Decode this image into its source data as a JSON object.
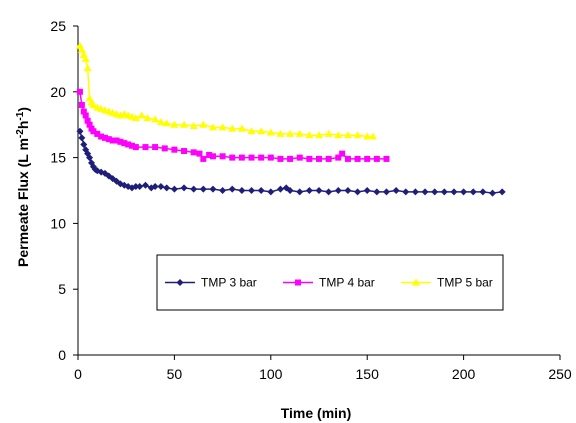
{
  "chart_data": {
    "type": "scatter",
    "title": "",
    "xlabel": "Time (min)",
    "ylabel_main": "Permeate Flux (L m",
    "ylabel_sup1": "-2",
    "ylabel_mid": "h",
    "ylabel_sup2": "-1",
    "ylabel_end": ")",
    "xlim": [
      0,
      250
    ],
    "ylim": [
      0,
      25
    ],
    "x_ticks": [
      0,
      50,
      100,
      150,
      200,
      250
    ],
    "y_ticks": [
      0,
      5,
      10,
      15,
      20,
      25
    ],
    "grid": false,
    "legend_position": "center-right",
    "series": [
      {
        "name": "TMP 3 bar",
        "color": "#1F1F7A",
        "marker": "diamond",
        "points": [
          [
            1,
            17
          ],
          [
            2,
            16.5
          ],
          [
            3,
            16
          ],
          [
            4,
            15.6
          ],
          [
            5,
            15.3
          ],
          [
            6,
            15
          ],
          [
            7,
            14.6
          ],
          [
            8,
            14.3
          ],
          [
            9,
            14.1
          ],
          [
            10,
            14.0
          ],
          [
            12,
            13.9
          ],
          [
            14,
            13.8
          ],
          [
            16,
            13.6
          ],
          [
            18,
            13.4
          ],
          [
            20,
            13.2
          ],
          [
            22,
            13.0
          ],
          [
            24,
            12.9
          ],
          [
            26,
            12.8
          ],
          [
            28,
            12.7
          ],
          [
            30,
            12.8
          ],
          [
            32,
            12.8
          ],
          [
            35,
            12.9
          ],
          [
            38,
            12.7
          ],
          [
            40,
            12.8
          ],
          [
            43,
            12.8
          ],
          [
            46,
            12.7
          ],
          [
            50,
            12.6
          ],
          [
            55,
            12.7
          ],
          [
            60,
            12.6
          ],
          [
            65,
            12.6
          ],
          [
            70,
            12.6
          ],
          [
            75,
            12.5
          ],
          [
            80,
            12.6
          ],
          [
            85,
            12.5
          ],
          [
            90,
            12.5
          ],
          [
            95,
            12.5
          ],
          [
            100,
            12.4
          ],
          [
            105,
            12.6
          ],
          [
            108,
            12.7
          ],
          [
            110,
            12.5
          ],
          [
            115,
            12.4
          ],
          [
            120,
            12.5
          ],
          [
            125,
            12.5
          ],
          [
            130,
            12.4
          ],
          [
            135,
            12.5
          ],
          [
            140,
            12.5
          ],
          [
            145,
            12.4
          ],
          [
            150,
            12.5
          ],
          [
            155,
            12.4
          ],
          [
            160,
            12.4
          ],
          [
            165,
            12.5
          ],
          [
            170,
            12.4
          ],
          [
            175,
            12.4
          ],
          [
            180,
            12.4
          ],
          [
            185,
            12.4
          ],
          [
            190,
            12.4
          ],
          [
            195,
            12.4
          ],
          [
            200,
            12.4
          ],
          [
            205,
            12.4
          ],
          [
            210,
            12.4
          ],
          [
            215,
            12.3
          ],
          [
            220,
            12.4
          ]
        ]
      },
      {
        "name": "TMP 4 bar",
        "color": "#FF00FF",
        "marker": "square",
        "points": [
          [
            1,
            20
          ],
          [
            2,
            19
          ],
          [
            3,
            18.5
          ],
          [
            4,
            18.2
          ],
          [
            5,
            17.8
          ],
          [
            6,
            17.5
          ],
          [
            7,
            17.2
          ],
          [
            8,
            17.0
          ],
          [
            10,
            16.8
          ],
          [
            12,
            16.6
          ],
          [
            14,
            16.5
          ],
          [
            16,
            16.4
          ],
          [
            18,
            16.3
          ],
          [
            20,
            16.3
          ],
          [
            22,
            16.2
          ],
          [
            24,
            16.1
          ],
          [
            26,
            16.0
          ],
          [
            28,
            15.9
          ],
          [
            30,
            15.8
          ],
          [
            35,
            15.8
          ],
          [
            40,
            15.8
          ],
          [
            45,
            15.7
          ],
          [
            50,
            15.6
          ],
          [
            55,
            15.5
          ],
          [
            60,
            15.4
          ],
          [
            63,
            15.3
          ],
          [
            65,
            14.9
          ],
          [
            68,
            15.2
          ],
          [
            70,
            15.1
          ],
          [
            75,
            15.1
          ],
          [
            80,
            15.0
          ],
          [
            85,
            15.0
          ],
          [
            90,
            15.0
          ],
          [
            95,
            15.0
          ],
          [
            100,
            15.0
          ],
          [
            105,
            14.9
          ],
          [
            110,
            14.9
          ],
          [
            115,
            15.0
          ],
          [
            120,
            14.9
          ],
          [
            125,
            14.9
          ],
          [
            130,
            14.9
          ],
          [
            135,
            15.0
          ],
          [
            137,
            15.3
          ],
          [
            140,
            14.9
          ],
          [
            145,
            14.9
          ],
          [
            150,
            14.9
          ],
          [
            155,
            14.9
          ],
          [
            160,
            14.9
          ]
        ]
      },
      {
        "name": "TMP 5 bar",
        "color": "#FFFF00",
        "marker": "triangle",
        "points": [
          [
            1,
            23.5
          ],
          [
            2,
            23.2
          ],
          [
            3,
            22.8
          ],
          [
            4,
            22.5
          ],
          [
            5,
            21.8
          ],
          [
            6,
            19.5
          ],
          [
            7,
            19.2
          ],
          [
            8,
            19.0
          ],
          [
            10,
            18.8
          ],
          [
            12,
            18.7
          ],
          [
            14,
            18.6
          ],
          [
            16,
            18.5
          ],
          [
            18,
            18.4
          ],
          [
            20,
            18.3
          ],
          [
            22,
            18.2
          ],
          [
            24,
            18.3
          ],
          [
            26,
            18.2
          ],
          [
            28,
            18.1
          ],
          [
            30,
            18.0
          ],
          [
            33,
            18.2
          ],
          [
            36,
            18.0
          ],
          [
            40,
            17.9
          ],
          [
            43,
            17.7
          ],
          [
            46,
            17.6
          ],
          [
            50,
            17.5
          ],
          [
            55,
            17.5
          ],
          [
            60,
            17.4
          ],
          [
            65,
            17.5
          ],
          [
            70,
            17.3
          ],
          [
            75,
            17.3
          ],
          [
            80,
            17.2
          ],
          [
            85,
            17.2
          ],
          [
            90,
            17.0
          ],
          [
            95,
            17.0
          ],
          [
            100,
            16.9
          ],
          [
            105,
            16.8
          ],
          [
            110,
            16.8
          ],
          [
            115,
            16.8
          ],
          [
            120,
            16.7
          ],
          [
            125,
            16.7
          ],
          [
            130,
            16.8
          ],
          [
            135,
            16.7
          ],
          [
            140,
            16.7
          ],
          [
            145,
            16.7
          ],
          [
            150,
            16.6
          ],
          [
            153,
            16.6
          ]
        ]
      }
    ]
  }
}
